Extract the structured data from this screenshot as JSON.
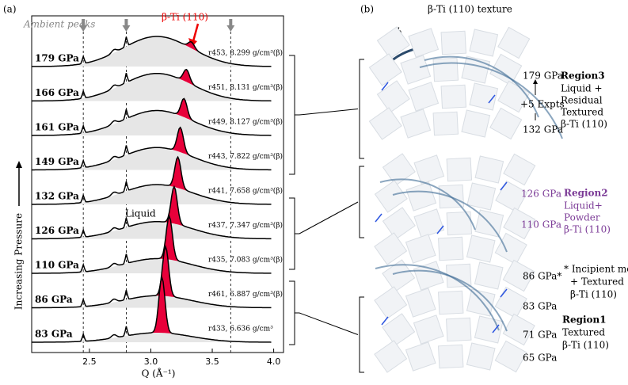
{
  "chart_data": {
    "type": "stacked-diffraction",
    "panel_label": "(a)",
    "xlabel": "Q (Å⁻¹)",
    "xlim": [
      2.03,
      4.08
    ],
    "xticks": [
      {
        "value": 2.5,
        "label": "2.5"
      },
      {
        "value": 3,
        "label": "3.0"
      },
      {
        "value": 3.5,
        "label": "3.5"
      },
      {
        "value": 4,
        "label": "4.0"
      }
    ],
    "ylabel": "Increasing Pressure",
    "ambient_label": "Ambient peaks",
    "ambient_peaks": [
      2.45,
      2.8,
      3.65
    ],
    "peak_label": "β-Ti (110)",
    "liquid_label": "Liquid",
    "traces": [
      {
        "pressure": "179 GPa",
        "run": "r453, 8.299 g/cm³(β)",
        "peak_q": 3.33
      },
      {
        "pressure": "166 GPa",
        "run": "r451, 8.131 g/cm³(β)",
        "peak_q": 3.29
      },
      {
        "pressure": "161 GPa",
        "run": "r449, 8.127 g/cm³(β)",
        "peak_q": 3.27
      },
      {
        "pressure": "149 GPa",
        "run": "r443, 7.822 g/cm³(β)",
        "peak_q": 3.24
      },
      {
        "pressure": "132 GPa",
        "run": "r441, 7.658 g/cm³(β)",
        "peak_q": 3.22
      },
      {
        "pressure": "126 GPa",
        "run": "r437, 7.347 g/cm³(β)",
        "peak_q": 3.19
      },
      {
        "pressure": "110 GPa",
        "run": "r435, 7.083 g/cm³(β)",
        "peak_q": 3.15
      },
      {
        "pressure": "86 GPa",
        "run": "r461, 6.887 g/cm³(β)",
        "peak_q": 3.12
      },
      {
        "pressure": "83 GPa",
        "run": "r433, 6.636 g/cm³",
        "peak_q": 3.09
      }
    ]
  },
  "panel_b": {
    "panel_label": "(b)",
    "title": "β-Ti (110) texture",
    "phi": "ϕ",
    "region3": {
      "name": "Region3",
      "lines": [
        "Liquid +",
        "Residual",
        "Textured",
        "β-Ti (110)"
      ],
      "top": "179 GPa",
      "mid": "+5 Expts",
      "bottom": "132 GPa"
    },
    "region2": {
      "name": "Region2",
      "lines": [
        "Liquid+",
        "Powder",
        "β-Ti (110)"
      ],
      "top": "126 GPa",
      "bottom": "110 GPa"
    },
    "incipient": [
      "* Incipient melt",
      "+ Textured",
      "β-Ti (110)"
    ],
    "region1": {
      "name": "Region1",
      "lines": [
        "Textured",
        "β-Ti (110)"
      ],
      "pressures": [
        "86 GPa*",
        "83 GPa",
        "71 GPa",
        "65 GPa"
      ]
    }
  }
}
